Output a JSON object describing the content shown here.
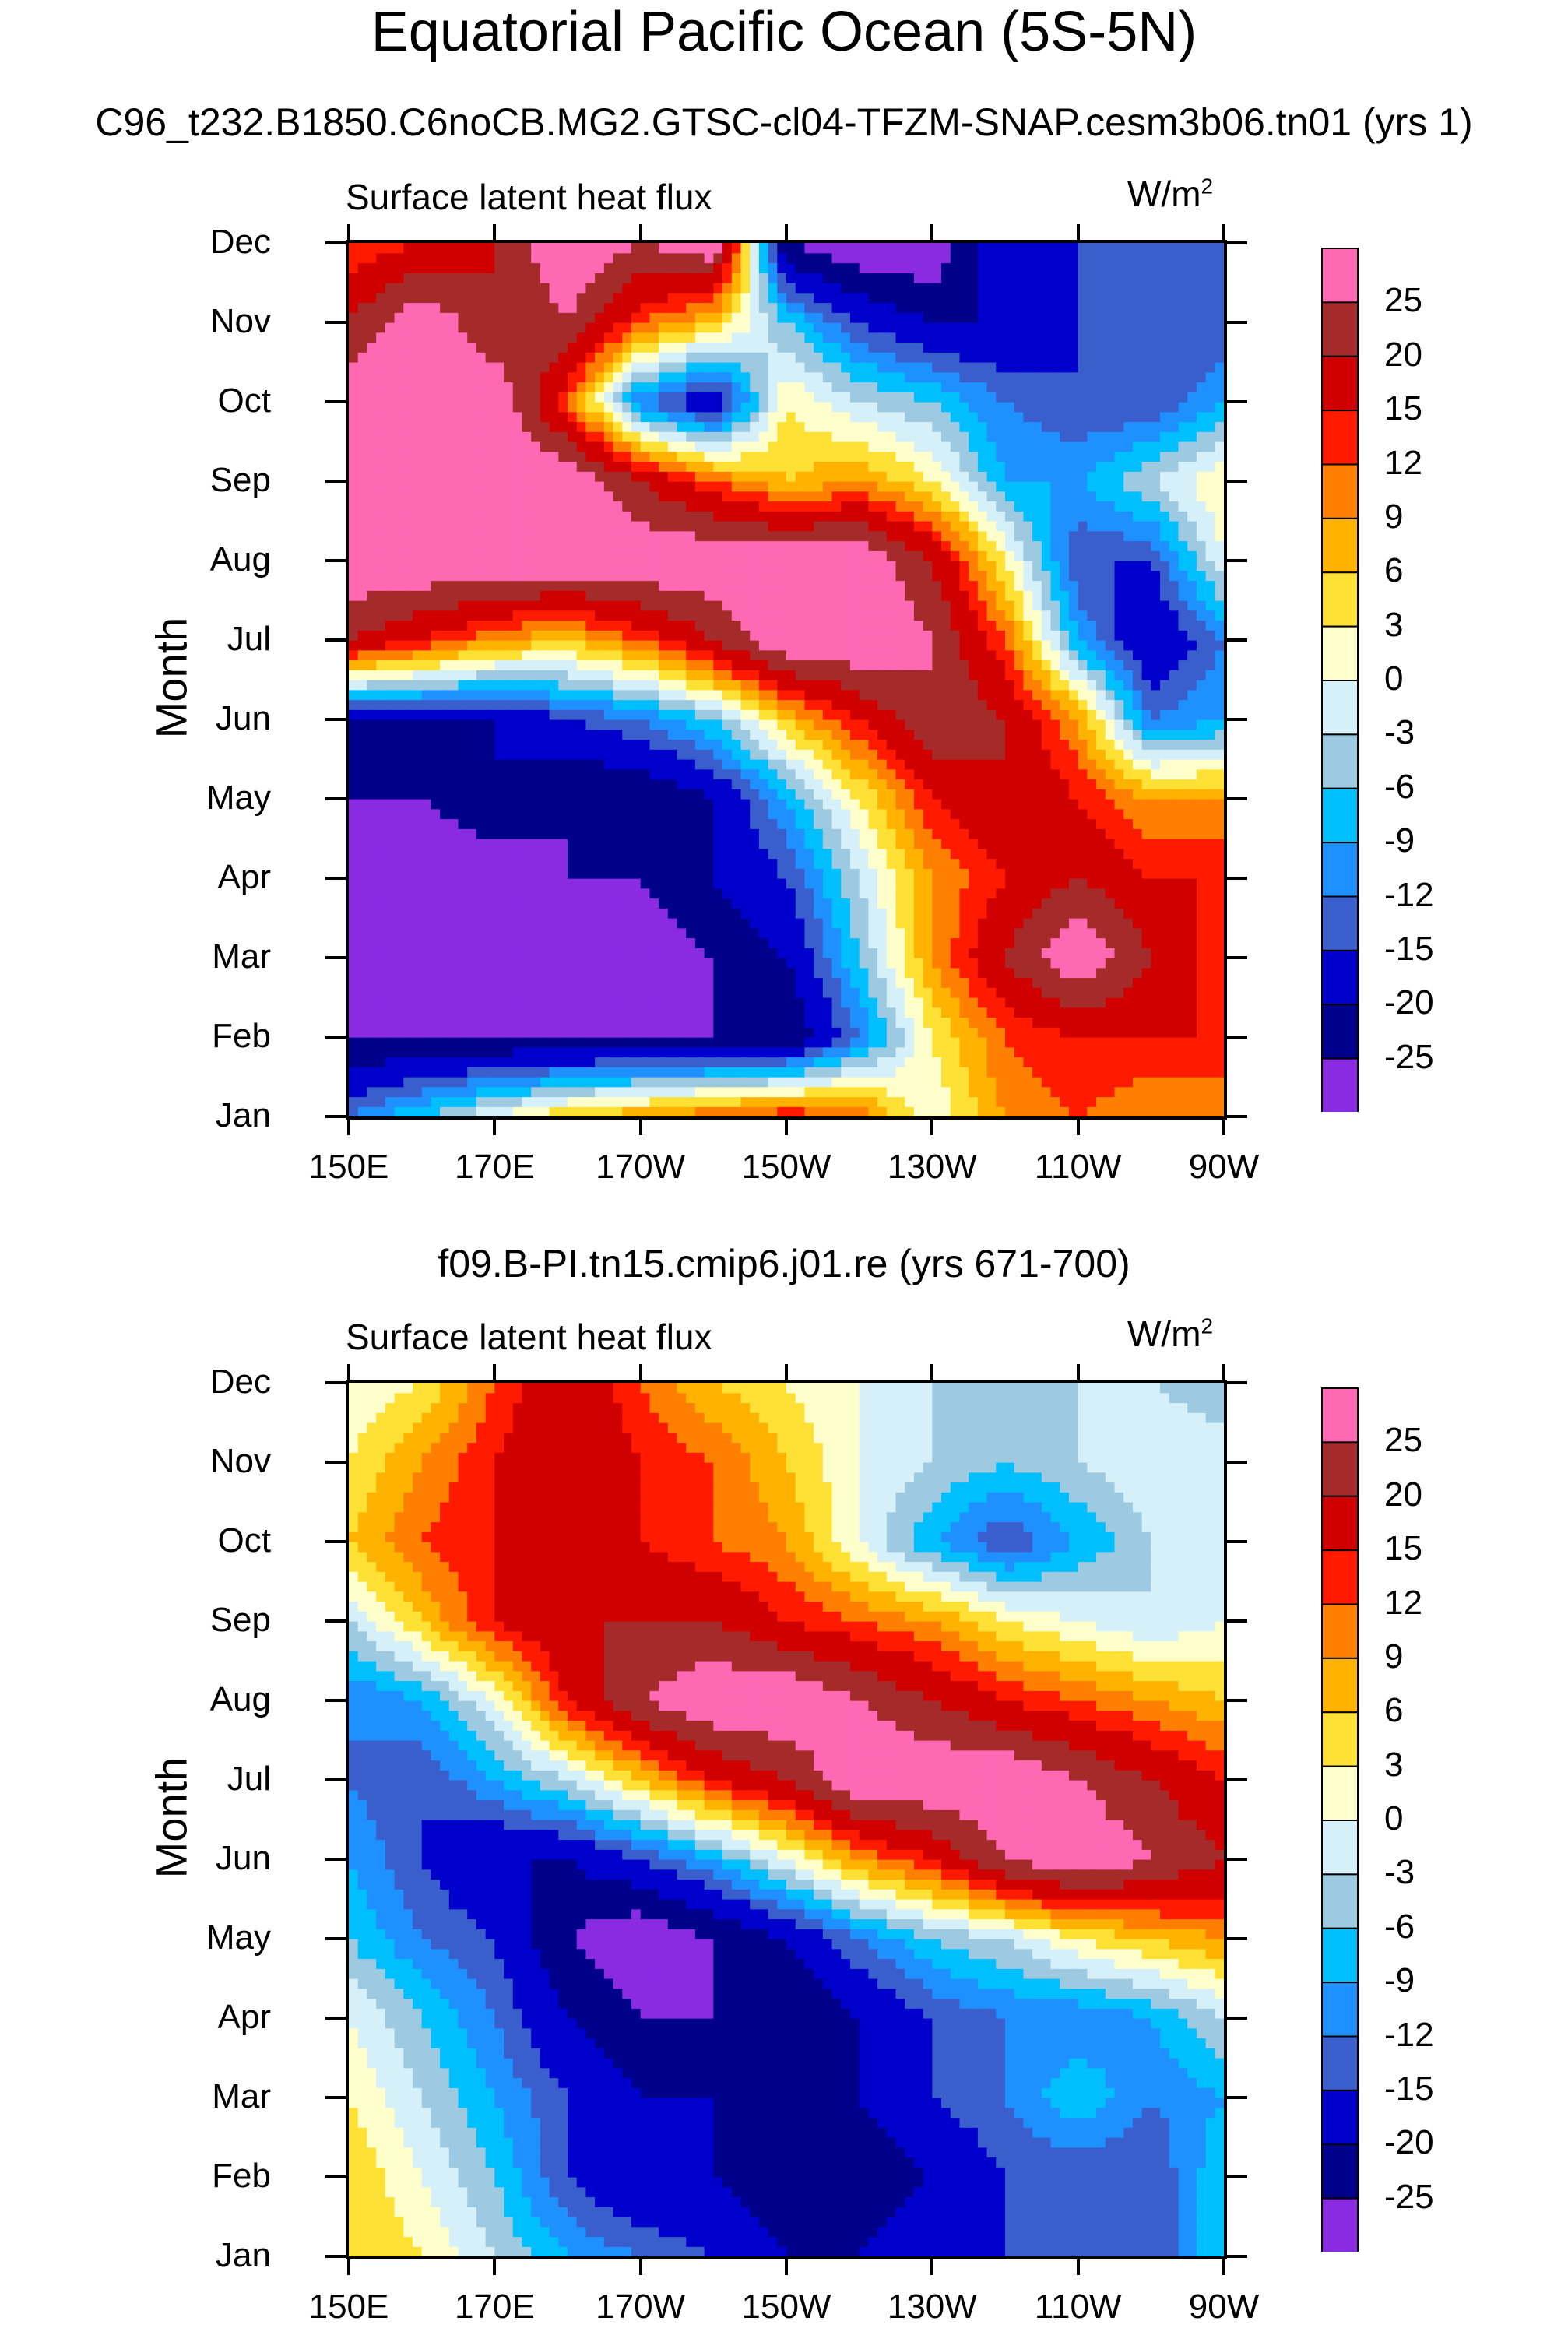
{
  "title": "Equatorial Pacific Ocean (5S-5N)",
  "panels": [
    {
      "subtitle": "C96_t232.B1850.C6noCB.MG2.GTSC-cl04-TFZM-SNAP.cesm3b06.tn01 (yrs 1)",
      "variable": "Surface latent heat flux",
      "units": "W/m",
      "units_sup": "2",
      "ylabel": "Month"
    },
    {
      "subtitle": "f09.B-PI.tn15.cmip6.j01.re (yrs 671-700)",
      "variable": "Surface latent heat flux",
      "units": "W/m",
      "units_sup": "2",
      "ylabel": "Month"
    }
  ],
  "chart_data": [
    {
      "type": "heatmap",
      "xlabel": "",
      "ylabel": "Month",
      "x_ticks": [
        "150E",
        "170E",
        "170W",
        "150W",
        "130W",
        "110W",
        "90W"
      ],
      "x_range_deg_east": [
        150,
        270
      ],
      "y_ticks": [
        "Jan",
        "Feb",
        "Mar",
        "Apr",
        "May",
        "Jun",
        "Jul",
        "Aug",
        "Sep",
        "Oct",
        "Nov",
        "Dec"
      ],
      "levels": [
        -25,
        -20,
        -15,
        -12,
        -9,
        -6,
        -3,
        0,
        3,
        6,
        9,
        12,
        15,
        20,
        25
      ],
      "colors": [
        "#8a2be2",
        "#00008b",
        "#0000cd",
        "#3a5fcd",
        "#1e90ff",
        "#00bfff",
        "#9ecae1",
        "#d6f0fa",
        "#ffffcc",
        "#ffe135",
        "#ffb300",
        "#ff7f00",
        "#ff1a00",
        "#d10000",
        "#a52a2a",
        "#ff69b4"
      ],
      "colorbar_labels": [
        "25",
        "20",
        "15",
        "12",
        "9",
        "6",
        "3",
        "0",
        "-3",
        "-6",
        "-9",
        "-12",
        "-15",
        "-20",
        "-25"
      ],
      "longitudes_deg_east": [
        150,
        160,
        170,
        180,
        190,
        200,
        210,
        220,
        230,
        240,
        250,
        260,
        270
      ],
      "months": [
        "Jan",
        "Feb",
        "Mar",
        "Apr",
        "May",
        "Jun",
        "Jul",
        "Aug",
        "Sep",
        "Oct",
        "Nov",
        "Dec"
      ],
      "values": [
        [
          -12,
          -6,
          0,
          6,
          9,
          12,
          15,
          12,
          0,
          9,
          12,
          9,
          9
        ],
        [
          -25,
          -25,
          -25,
          -25,
          -25,
          -25,
          -25,
          -12,
          3,
          12,
          15,
          15,
          15
        ],
        [
          -30,
          -30,
          -30,
          -30,
          -30,
          -25,
          -20,
          -6,
          9,
          20,
          30,
          20,
          12
        ],
        [
          -30,
          -30,
          -30,
          -25,
          -25,
          -20,
          -15,
          -3,
          9,
          15,
          20,
          15,
          15
        ],
        [
          -25,
          -25,
          -20,
          -25,
          -25,
          -20,
          -9,
          3,
          15,
          20,
          15,
          9,
          9
        ],
        [
          -20,
          -20,
          -20,
          -15,
          -12,
          -6,
          6,
          15,
          25,
          20,
          9,
          -12,
          -9
        ],
        [
          20,
          15,
          9,
          6,
          12,
          20,
          30,
          30,
          25,
          12,
          -9,
          -20,
          -12
        ],
        [
          30,
          30,
          30,
          30,
          30,
          30,
          30,
          30,
          20,
          3,
          -15,
          -15,
          0
        ],
        [
          30,
          30,
          30,
          30,
          20,
          12,
          6,
          9,
          3,
          -9,
          -9,
          -3,
          3
        ],
        [
          30,
          30,
          30,
          12,
          -12,
          -20,
          3,
          -3,
          -6,
          -12,
          -15,
          -15,
          -9
        ],
        [
          20,
          30,
          20,
          25,
          12,
          6,
          -6,
          -15,
          -20,
          -20,
          -15,
          -15,
          -15
        ],
        [
          12,
          15,
          20,
          30,
          25,
          30,
          -25,
          -30,
          -30,
          -15,
          -15,
          -12,
          -12
        ]
      ]
    },
    {
      "type": "heatmap",
      "xlabel": "",
      "ylabel": "Month",
      "x_ticks": [
        "150E",
        "170E",
        "170W",
        "150W",
        "130W",
        "110W",
        "90W"
      ],
      "x_range_deg_east": [
        150,
        270
      ],
      "y_ticks": [
        "Jan",
        "Feb",
        "Mar",
        "Apr",
        "May",
        "Jun",
        "Jul",
        "Aug",
        "Sep",
        "Oct",
        "Nov",
        "Dec"
      ],
      "levels": [
        -25,
        -20,
        -15,
        -12,
        -9,
        -6,
        -3,
        0,
        3,
        6,
        9,
        12,
        15,
        20,
        25
      ],
      "colors": [
        "#8a2be2",
        "#00008b",
        "#0000cd",
        "#3a5fcd",
        "#1e90ff",
        "#00bfff",
        "#9ecae1",
        "#d6f0fa",
        "#ffffcc",
        "#ffe135",
        "#ffb300",
        "#ff7f00",
        "#ff1a00",
        "#d10000",
        "#a52a2a",
        "#ff69b4"
      ],
      "colorbar_labels": [
        "25",
        "20",
        "15",
        "12",
        "9",
        "6",
        "3",
        "0",
        "-3",
        "-6",
        "-9",
        "-12",
        "-15",
        "-20",
        "-25"
      ],
      "longitudes_deg_east": [
        150,
        160,
        170,
        180,
        190,
        200,
        210,
        220,
        230,
        240,
        250,
        260,
        270
      ],
      "months": [
        "Jan",
        "Feb",
        "Mar",
        "Apr",
        "May",
        "Jun",
        "Jul",
        "Aug",
        "Sep",
        "Oct",
        "Nov",
        "Dec"
      ],
      "values": [
        [
          6,
          3,
          -3,
          -9,
          -12,
          -15,
          -20,
          -20,
          -15,
          -15,
          -15,
          -15,
          -6
        ],
        [
          6,
          0,
          -6,
          -15,
          -20,
          -20,
          -25,
          -25,
          -20,
          -15,
          -15,
          -15,
          -6
        ],
        [
          3,
          -3,
          -9,
          -15,
          -20,
          -20,
          -20,
          -20,
          -15,
          -12,
          -6,
          -12,
          -9
        ],
        [
          0,
          -6,
          -12,
          -20,
          -25,
          -25,
          -25,
          -20,
          -15,
          -12,
          -12,
          -9,
          -3
        ],
        [
          -6,
          -12,
          -15,
          -25,
          -30,
          -25,
          -20,
          -12,
          -6,
          -3,
          3,
          6,
          9
        ],
        [
          -9,
          -15,
          -20,
          -20,
          -15,
          -9,
          0,
          9,
          15,
          25,
          30,
          25,
          20
        ],
        [
          -12,
          -15,
          -9,
          -3,
          6,
          15,
          20,
          30,
          30,
          30,
          25,
          20,
          15
        ],
        [
          -12,
          -9,
          0,
          15,
          25,
          30,
          30,
          25,
          20,
          15,
          12,
          9,
          6
        ],
        [
          -3,
          6,
          15,
          20,
          20,
          20,
          15,
          12,
          9,
          3,
          0,
          -3,
          0
        ],
        [
          6,
          12,
          15,
          15,
          15,
          12,
          9,
          0,
          -9,
          -15,
          -9,
          -3,
          0
        ],
        [
          3,
          9,
          15,
          20,
          15,
          12,
          6,
          0,
          -3,
          -6,
          -3,
          0,
          0
        ],
        [
          0,
          3,
          12,
          20,
          12,
          6,
          3,
          0,
          -3,
          -3,
          -3,
          -3,
          -6
        ]
      ]
    }
  ]
}
